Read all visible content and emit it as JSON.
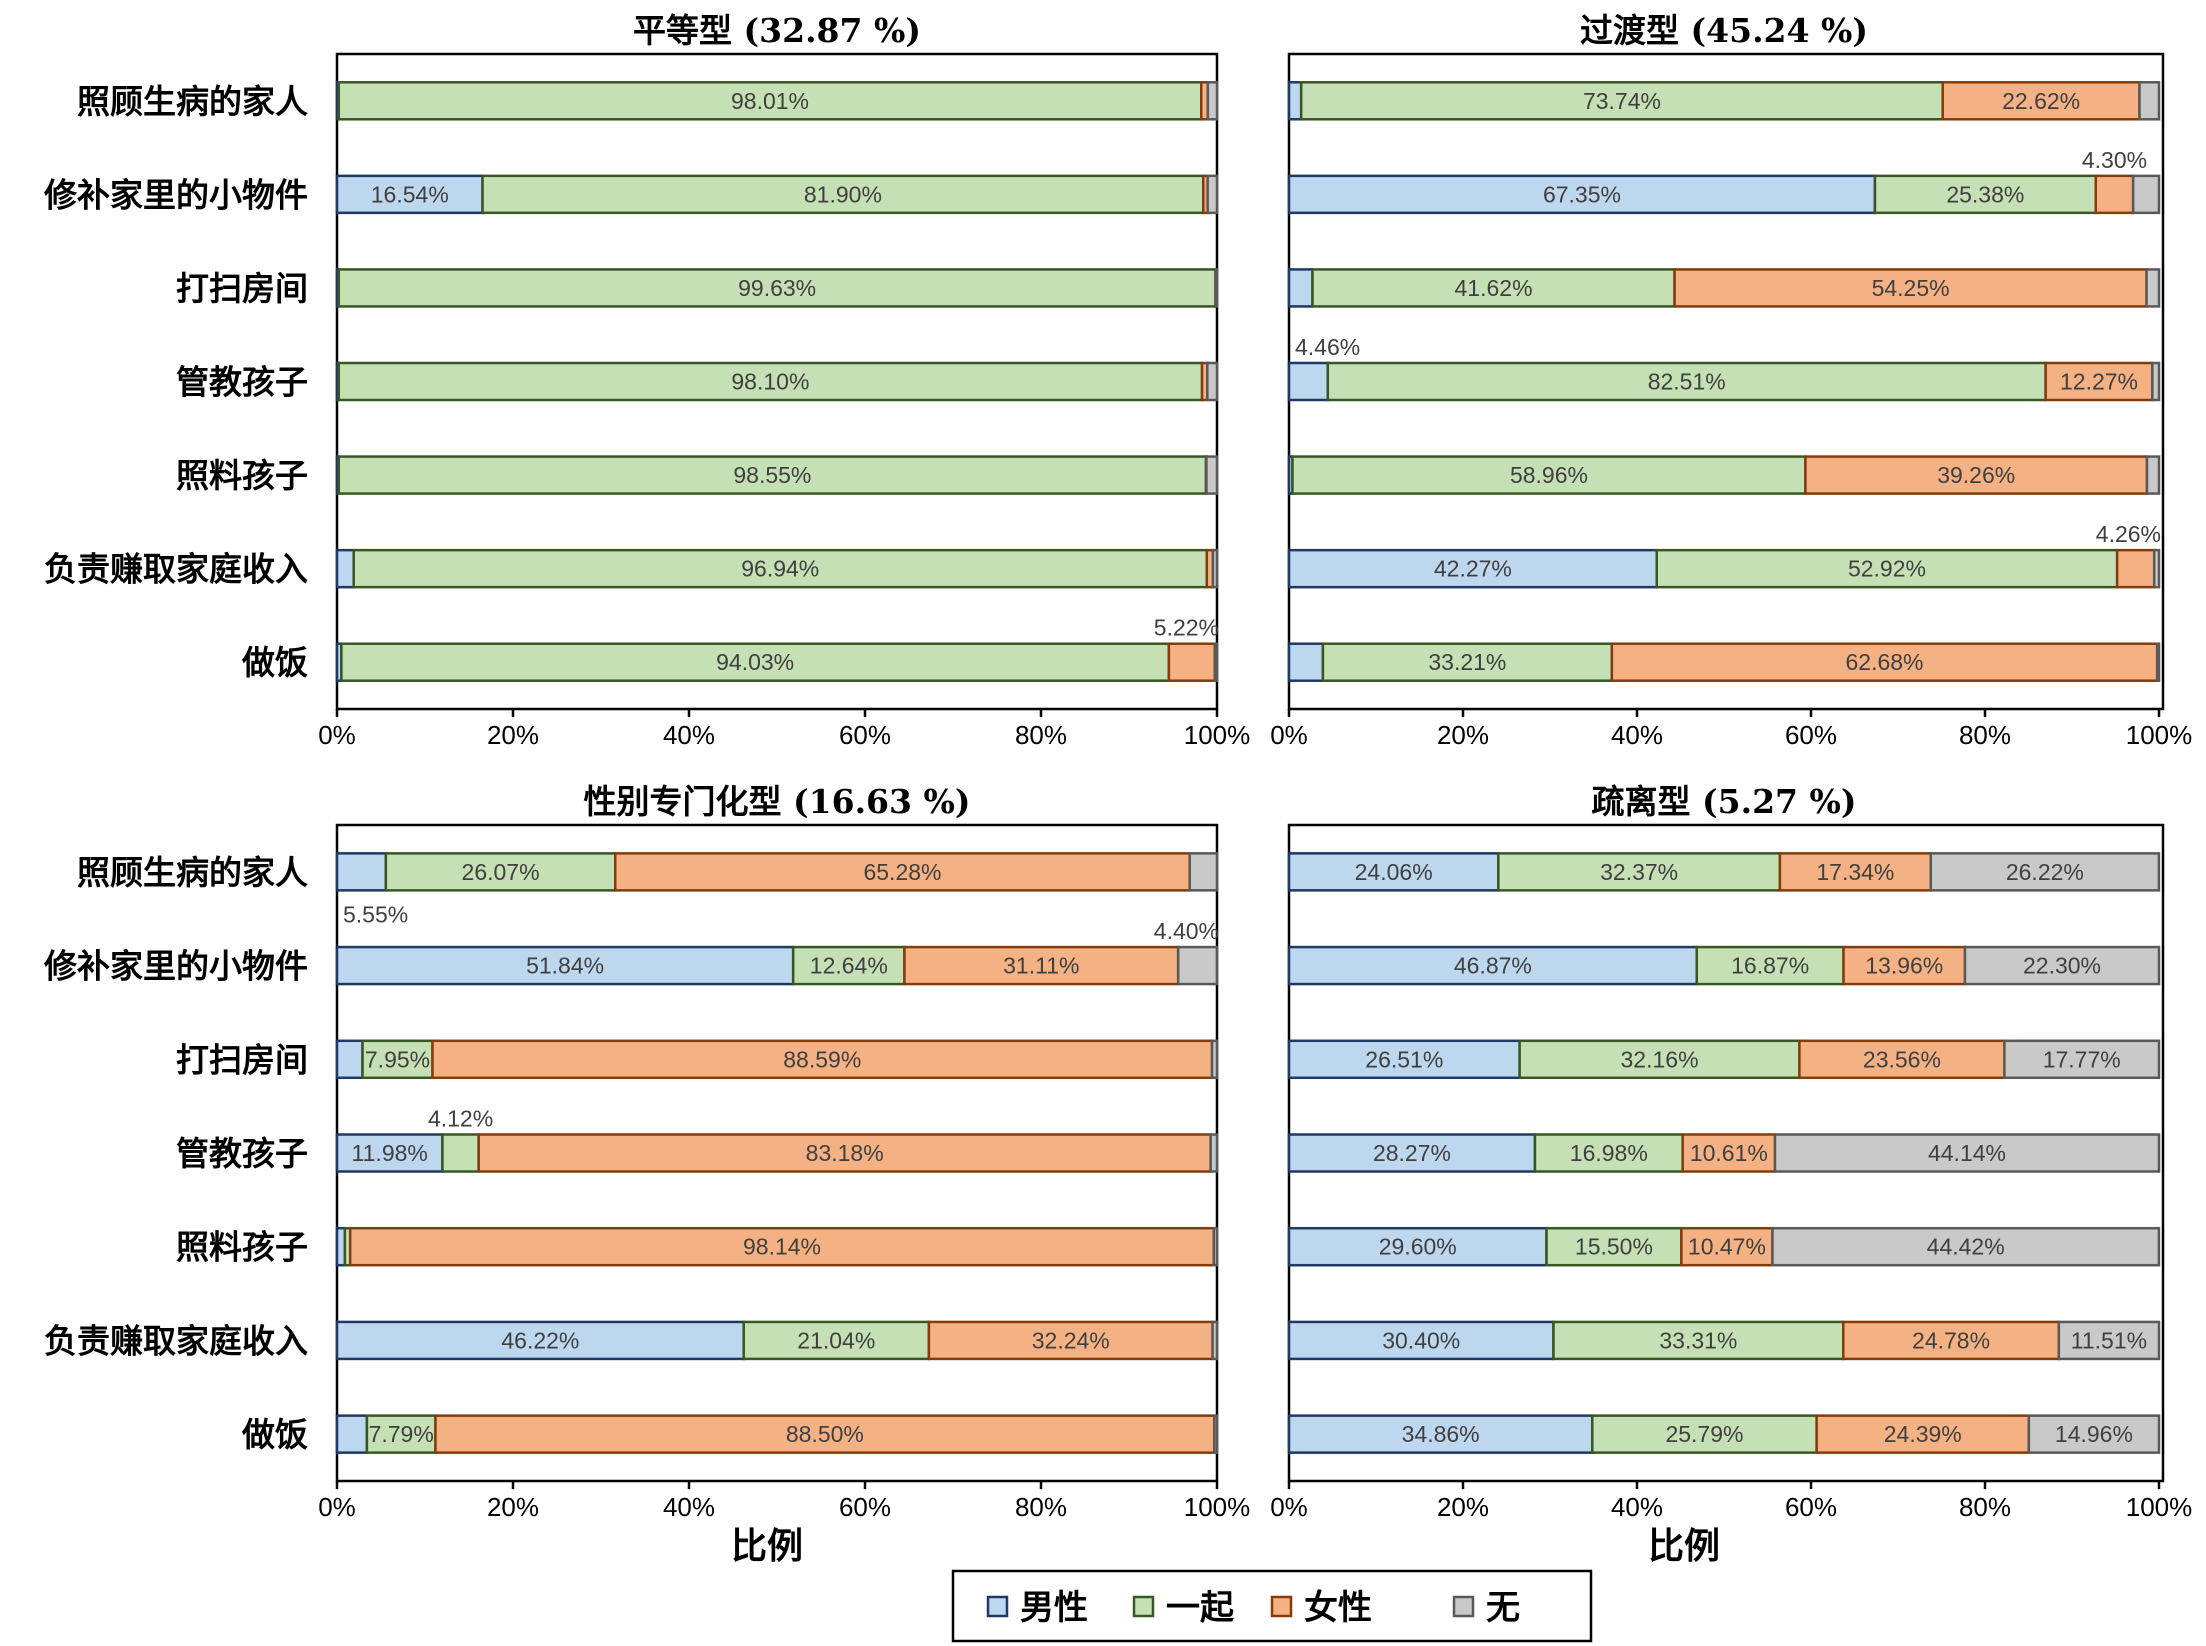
{
  "chart_data": {
    "type": "bar",
    "orientation": "horizontal",
    "stacked": "100%",
    "xlabel": "比例",
    "xlim": [
      0,
      100
    ],
    "x_ticks": [
      "0%",
      "20%",
      "40%",
      "60%",
      "80%",
      "100%"
    ],
    "legend": {
      "placement": "bottom",
      "entries": [
        "男性",
        "一起",
        "女性",
        "无"
      ]
    },
    "series_colors": {
      "男性": {
        "fill": "#BDD7EE",
        "stroke": "#1F3864"
      },
      "一起": {
        "fill": "#C5E0B4",
        "stroke": "#385723"
      },
      "女性": {
        "fill": "#F4B183",
        "stroke": "#843C0C"
      },
      "无": {
        "fill": "#C9C9C9",
        "stroke": "#595959"
      }
    },
    "categories": [
      "照顾生病的家人",
      "修补家里的小物件",
      "打扫房间",
      "管教孩子",
      "照料孩子",
      "负责赚取家庭收入",
      "做饭"
    ],
    "panels": [
      {
        "title": "平等型 (32.87 %)",
        "show_xlabel": false,
        "rows": [
          {
            "values": [
              0.2,
              98.01,
              0.75,
              1.04
            ],
            "labels": [
              "",
              "98.01%",
              "",
              ""
            ]
          },
          {
            "values": [
              16.54,
              81.9,
              0.5,
              1.06
            ],
            "labels": [
              "16.54%",
              "81.90%",
              "",
              ""
            ]
          },
          {
            "values": [
              0.2,
              99.63,
              0.05,
              0.12
            ],
            "labels": [
              "",
              "99.63%",
              "",
              ""
            ]
          },
          {
            "values": [
              0.2,
              98.1,
              0.6,
              1.1
            ],
            "labels": [
              "",
              "98.10%",
              "",
              ""
            ]
          },
          {
            "values": [
              0.2,
              98.55,
              0.05,
              1.2
            ],
            "labels": [
              "",
              "98.55%",
              "",
              ""
            ]
          },
          {
            "values": [
              1.9,
              96.94,
              0.7,
              0.46
            ],
            "labels": [
              "",
              "96.94%",
              "",
              ""
            ]
          },
          {
            "values": [
              0.5,
              94.03,
              5.22,
              0.25
            ],
            "labels": [
              "",
              "94.03%",
              "",
              ""
            ],
            "outside": [
              {
                "series": 2,
                "text": "5.22%",
                "pos": "above"
              }
            ]
          }
        ]
      },
      {
        "title": "过渡型 (45.24 %)",
        "show_xlabel": false,
        "rows": [
          {
            "values": [
              1.4,
              73.74,
              22.62,
              2.24
            ],
            "labels": [
              "",
              "73.74%",
              "22.62%",
              ""
            ]
          },
          {
            "values": [
              67.35,
              25.38,
              4.3,
              2.97
            ],
            "labels": [
              "67.35%",
              "25.38%",
              "",
              ""
            ],
            "outside": [
              {
                "series": 2,
                "text": "4.30%",
                "pos": "above"
              }
            ]
          },
          {
            "values": [
              2.7,
              41.62,
              54.25,
              1.43
            ],
            "labels": [
              "",
              "41.62%",
              "54.25%",
              ""
            ]
          },
          {
            "values": [
              4.46,
              82.51,
              12.27,
              0.76
            ],
            "labels": [
              "",
              "82.51%",
              "12.27%",
              ""
            ],
            "outside": [
              {
                "series": 0,
                "text": "4.46%",
                "pos": "above"
              }
            ]
          },
          {
            "values": [
              0.4,
              58.96,
              39.26,
              1.38
            ],
            "labels": [
              "",
              "58.96%",
              "39.26%",
              ""
            ]
          },
          {
            "values": [
              42.27,
              52.92,
              4.26,
              0.55
            ],
            "labels": [
              "42.27%",
              "52.92%",
              "",
              ""
            ],
            "outside": [
              {
                "series": 2,
                "text": "4.26%",
                "pos": "above"
              }
            ]
          },
          {
            "values": [
              3.9,
              33.21,
              62.68,
              0.21
            ],
            "labels": [
              "",
              "33.21%",
              "62.68%",
              ""
            ]
          }
        ]
      },
      {
        "title": "性别专门化型 (16.63 %)",
        "show_xlabel": true,
        "rows": [
          {
            "values": [
              5.55,
              26.07,
              65.28,
              3.1
            ],
            "labels": [
              "",
              "26.07%",
              "65.28%",
              ""
            ],
            "outside": [
              {
                "series": 0,
                "text": "5.55%",
                "pos": "below"
              }
            ]
          },
          {
            "values": [
              51.84,
              12.64,
              31.11,
              4.4
            ],
            "labels": [
              "51.84%",
              "12.64%",
              "31.11%",
              ""
            ],
            "outside": [
              {
                "series": 3,
                "text": "4.40%",
                "pos": "above"
              }
            ]
          },
          {
            "values": [
              2.9,
              7.95,
              88.59,
              0.56
            ],
            "labels": [
              "",
              "7.95%",
              "88.59%",
              ""
            ]
          },
          {
            "values": [
              11.98,
              4.12,
              83.18,
              0.72
            ],
            "labels": [
              "11.98%",
              "",
              "83.18%",
              ""
            ],
            "outside": [
              {
                "series": 1,
                "text": "4.12%",
                "pos": "above"
              }
            ]
          },
          {
            "values": [
              0.9,
              0.6,
              98.14,
              0.36
            ],
            "labels": [
              "",
              "",
              "98.14%",
              ""
            ]
          },
          {
            "values": [
              46.22,
              21.04,
              32.24,
              0.5
            ],
            "labels": [
              "46.22%",
              "21.04%",
              "32.24%",
              ""
            ]
          },
          {
            "values": [
              3.4,
              7.79,
              88.5,
              0.31
            ],
            "labels": [
              "",
              "7.79%",
              "88.50%",
              ""
            ]
          }
        ]
      },
      {
        "title": "疏离型 (5.27 %)",
        "show_xlabel": true,
        "rows": [
          {
            "values": [
              24.06,
              32.37,
              17.34,
              26.22
            ],
            "labels": [
              "24.06%",
              "32.37%",
              "17.34%",
              "26.22%"
            ]
          },
          {
            "values": [
              46.87,
              16.87,
              13.96,
              22.3
            ],
            "labels": [
              "46.87%",
              "16.87%",
              "13.96%",
              "22.30%"
            ]
          },
          {
            "values": [
              26.51,
              32.16,
              23.56,
              17.77
            ],
            "labels": [
              "26.51%",
              "32.16%",
              "23.56%",
              "17.77%"
            ]
          },
          {
            "values": [
              28.27,
              16.98,
              10.61,
              44.14
            ],
            "labels": [
              "28.27%",
              "16.98%",
              "10.61%",
              "44.14%"
            ]
          },
          {
            "values": [
              29.6,
              15.5,
              10.47,
              44.42
            ],
            "labels": [
              "29.60%",
              "15.50%",
              "10.47%",
              "44.42%"
            ]
          },
          {
            "values": [
              30.4,
              33.31,
              24.78,
              11.51
            ],
            "labels": [
              "30.40%",
              "33.31%",
              "24.78%",
              "11.51%"
            ]
          },
          {
            "values": [
              34.86,
              25.79,
              24.39,
              14.96
            ],
            "labels": [
              "34.86%",
              "25.79%",
              "24.39%",
              "14.96%"
            ]
          }
        ]
      }
    ]
  }
}
